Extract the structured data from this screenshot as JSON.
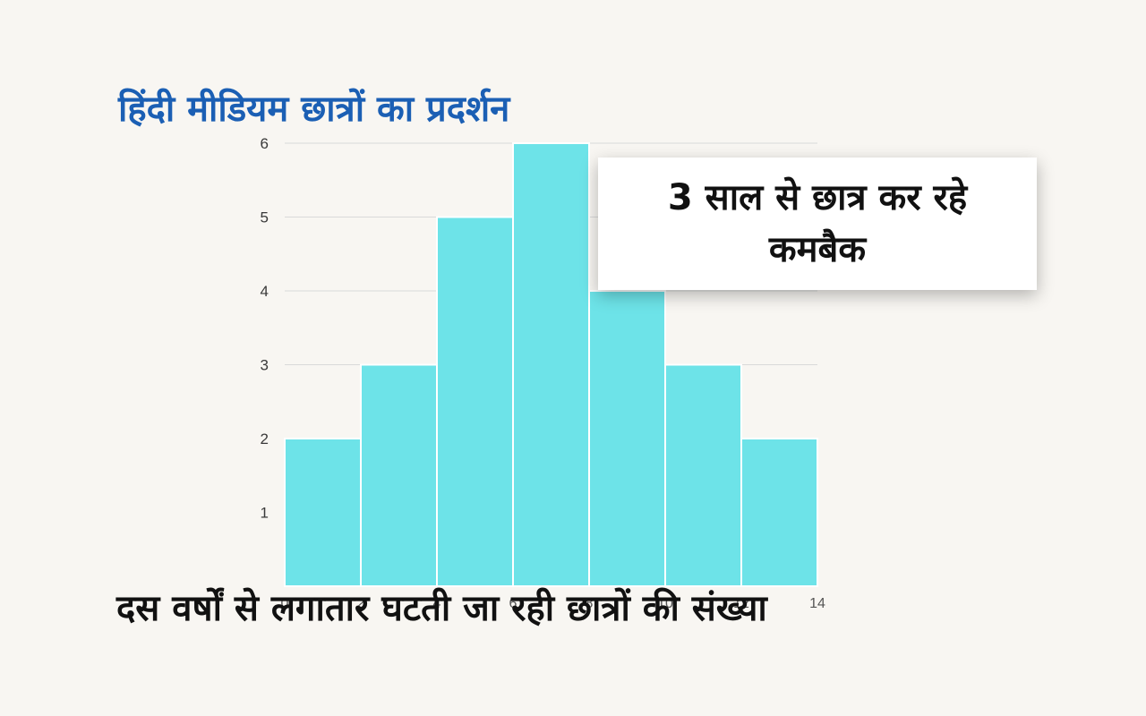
{
  "headline": "हिंदी मीडियम छात्रों का प्रदर्शन",
  "callout": "3 साल से छात्र कर रहे कमबैक",
  "caption": "दस वर्षों से लगातार घटती जा रही छात्रों की संख्या",
  "chart_data": {
    "type": "bar",
    "categories": [
      "0-2",
      "2-4",
      "4-6",
      "6-8",
      "8-10",
      "10-12",
      "12-14"
    ],
    "values": [
      2,
      3,
      5,
      6,
      4,
      3,
      2
    ],
    "y_ticks": [
      "1",
      "2",
      "3",
      "4",
      "5",
      "6"
    ],
    "x_ticks": [
      "0",
      "2",
      "4",
      "6",
      "8",
      "10",
      "12",
      "14"
    ],
    "ylim": [
      0,
      6
    ],
    "xlim": [
      0,
      14
    ],
    "grid": true,
    "bar_color": "#6de3e8"
  }
}
